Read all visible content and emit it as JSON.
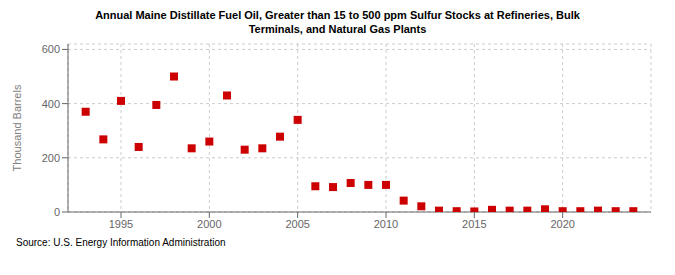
{
  "chart_data": {
    "type": "scatter",
    "title": "Annual Maine Distillate Fuel Oil, Greater than 15 to 500 ppm Sulfur Stocks at Refineries, Bulk\nTerminals, and Natural Gas Plants",
    "ylabel": "Thousand Barrels",
    "annotations": [
      "Source: U.S. Energy Information Administration"
    ],
    "x": [
      1993,
      1994,
      1995,
      1996,
      1997,
      1998,
      1999,
      2000,
      2001,
      2002,
      2003,
      2004,
      2005,
      2006,
      2007,
      2008,
      2009,
      2010,
      2011,
      2012,
      2013,
      2014,
      2015,
      2016,
      2017,
      2018,
      2019,
      2020,
      2021,
      2022,
      2023,
      2024
    ],
    "values": [
      370,
      268,
      410,
      240,
      395,
      500,
      235,
      260,
      430,
      230,
      235,
      278,
      340,
      95,
      92,
      107,
      100,
      100,
      42,
      21,
      5,
      3,
      2,
      8,
      5,
      5,
      10,
      3,
      3,
      5,
      3,
      3
    ],
    "color": "#cc0000",
    "marker": "square",
    "xlim": [
      1992,
      2025
    ],
    "ylim": [
      0,
      620
    ],
    "xticks": [
      1995,
      2000,
      2005,
      2010,
      2015,
      2020
    ],
    "yticks": [
      0,
      200,
      400,
      600
    ],
    "grid": true
  }
}
